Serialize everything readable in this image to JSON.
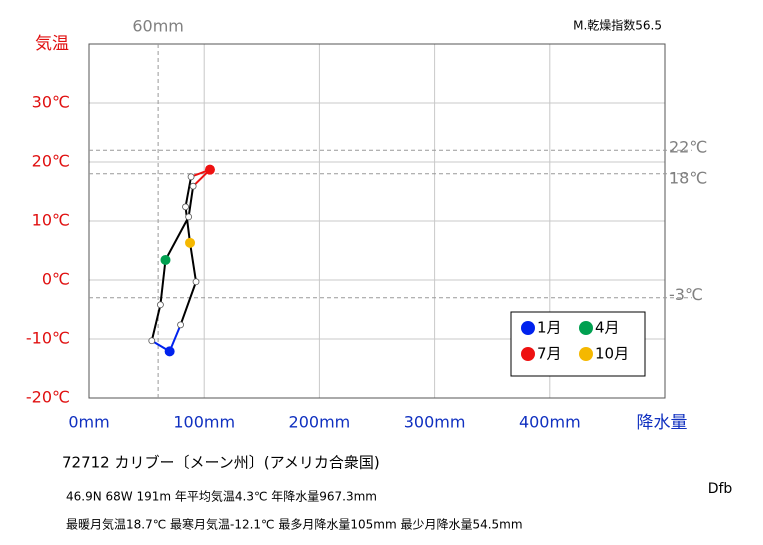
{
  "chart_data": {
    "type": "hythergraph",
    "x_label": "降水量",
    "y_label": "気温",
    "note": "M.乾燥指数56.5",
    "xlim": [
      0,
      500
    ],
    "ylim": [
      -20,
      40
    ],
    "xticks": [
      {
        "value": 0,
        "label": "0mm"
      },
      {
        "value": 100,
        "label": "100mm"
      },
      {
        "value": 200,
        "label": "200mm"
      },
      {
        "value": 300,
        "label": "300mm"
      },
      {
        "value": 400,
        "label": "400mm"
      }
    ],
    "yticks": [
      {
        "value": -20,
        "label": "-20℃"
      },
      {
        "value": -10,
        "label": "-10℃"
      },
      {
        "value": 0,
        "label": "0℃"
      },
      {
        "value": 10,
        "label": "10℃"
      },
      {
        "value": 20,
        "label": "20℃"
      },
      {
        "value": 30,
        "label": "30℃"
      }
    ],
    "grid": true,
    "ref_lines_x": [
      {
        "value": 60,
        "label": "60mm"
      }
    ],
    "ref_lines_y": [
      {
        "value": 22,
        "label": "22℃"
      },
      {
        "value": 18,
        "label": "18℃"
      },
      {
        "value": -3,
        "label": "-3℃"
      }
    ],
    "precipitation": [
      70,
      54.5,
      62,
      66.4,
      86.5,
      90.4,
      105,
      88.6,
      83.8,
      87.7,
      92.9,
      79.5
    ],
    "temperature": [
      -12.1,
      -10.3,
      -4.2,
      3.4,
      10.7,
      15.9,
      18.7,
      17.5,
      12.4,
      6.3,
      -0.3,
      -7.6
    ],
    "point_colors": [
      "#0022ee",
      "#ffffff",
      "#ffffff",
      "#00a050",
      "#ffffff",
      "#ffffff",
      "#ee1111",
      "#ffffff",
      "#ffffff",
      "#f5b800",
      "#ffffff",
      "#ffffff"
    ],
    "segment_colors": [
      "#0022ee",
      "#000000",
      "#000000",
      "#000000",
      "#000000",
      "#ee1111",
      "#ee1111",
      "#000000",
      "#000000",
      "#000000",
      "#000000",
      "#0022ee"
    ],
    "legend": [
      {
        "name": "1月",
        "color": "#0022ee"
      },
      {
        "name": "4月",
        "color": "#00a050"
      },
      {
        "name": "7月",
        "color": "#ee1111"
      },
      {
        "name": "10月",
        "color": "#f5b800"
      }
    ]
  },
  "info": {
    "station": "72712 カリブー〔メーン州〕(アメリカ合衆国)",
    "line1": "46.9N 68W 191m 年平均気温4.3℃ 年降水量967.3mm",
    "line2": "最暖月気温18.7℃ 最寒月気温-12.1℃ 最多月降水量105mm 最少月降水量54.5mm",
    "climate": "Dfb"
  }
}
